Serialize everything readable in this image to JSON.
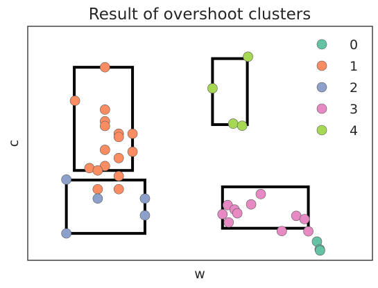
{
  "chart_data": {
    "type": "scatter",
    "title": "Result of overshoot clusters",
    "xlabel": "w",
    "ylabel": "c",
    "xlim": [
      0,
      100
    ],
    "ylim": [
      0,
      100
    ],
    "grid": false,
    "legend_position": "top-right",
    "colors": [
      "#66c2a5",
      "#fc8d62",
      "#8da0cb",
      "#e78ac3",
      "#a6d854"
    ],
    "series": [
      {
        "name": "0",
        "points": [
          [
            83.9,
            8.0
          ],
          [
            84.7,
            4.7
          ],
          [
            84.8,
            4.2
          ]
        ]
      },
      {
        "name": "1",
        "points": [
          [
            22.4,
            82.5
          ],
          [
            13.7,
            68.2
          ],
          [
            22.4,
            64.4
          ],
          [
            22.4,
            59.4
          ],
          [
            22.4,
            57.4
          ],
          [
            26.4,
            54.1
          ],
          [
            30.4,
            54.1
          ],
          [
            26.4,
            52.7
          ],
          [
            22.4,
            47.2
          ],
          [
            30.4,
            46.4
          ],
          [
            26.4,
            43.7
          ],
          [
            22.4,
            40.3
          ],
          [
            17.9,
            39.4
          ],
          [
            20.3,
            38.4
          ],
          [
            26.4,
            36.0
          ],
          [
            20.3,
            30.4
          ],
          [
            26.4,
            30.4
          ]
        ]
      },
      {
        "name": "2",
        "points": [
          [
            11.2,
            34.5
          ],
          [
            20.3,
            26.4
          ],
          [
            34.0,
            26.4
          ],
          [
            34.0,
            19.2
          ],
          [
            11.2,
            11.5
          ]
        ]
      },
      {
        "name": "3",
        "points": [
          [
            67.6,
            28.3
          ],
          [
            64.8,
            23.9
          ],
          [
            58.0,
            23.6
          ],
          [
            60.0,
            21.7
          ],
          [
            60.8,
            20.1
          ],
          [
            56.5,
            19.7
          ],
          [
            77.9,
            19.0
          ],
          [
            80.3,
            17.6
          ],
          [
            58.3,
            16.2
          ],
          [
            73.7,
            12.5
          ],
          [
            81.4,
            12.4
          ]
        ]
      },
      {
        "name": "4",
        "points": [
          [
            63.9,
            87.0
          ],
          [
            53.6,
            73.5
          ],
          [
            59.6,
            58.4
          ],
          [
            62.2,
            57.5
          ]
        ]
      }
    ],
    "rectangles": [
      {
        "x": [
          13.5,
          30.4
        ],
        "y": [
          38.4,
          82.5
        ]
      },
      {
        "x": [
          11.2,
          34.0
        ],
        "y": [
          11.5,
          34.3
        ]
      },
      {
        "x": [
          53.6,
          63.7
        ],
        "y": [
          58.0,
          86.2
        ]
      },
      {
        "x": [
          56.5,
          81.4
        ],
        "y": [
          13.7,
          31.4
        ]
      },
      {
        "x": [
          83.9,
          84.7
        ],
        "y": [
          4.7,
          8.0
        ]
      }
    ]
  }
}
